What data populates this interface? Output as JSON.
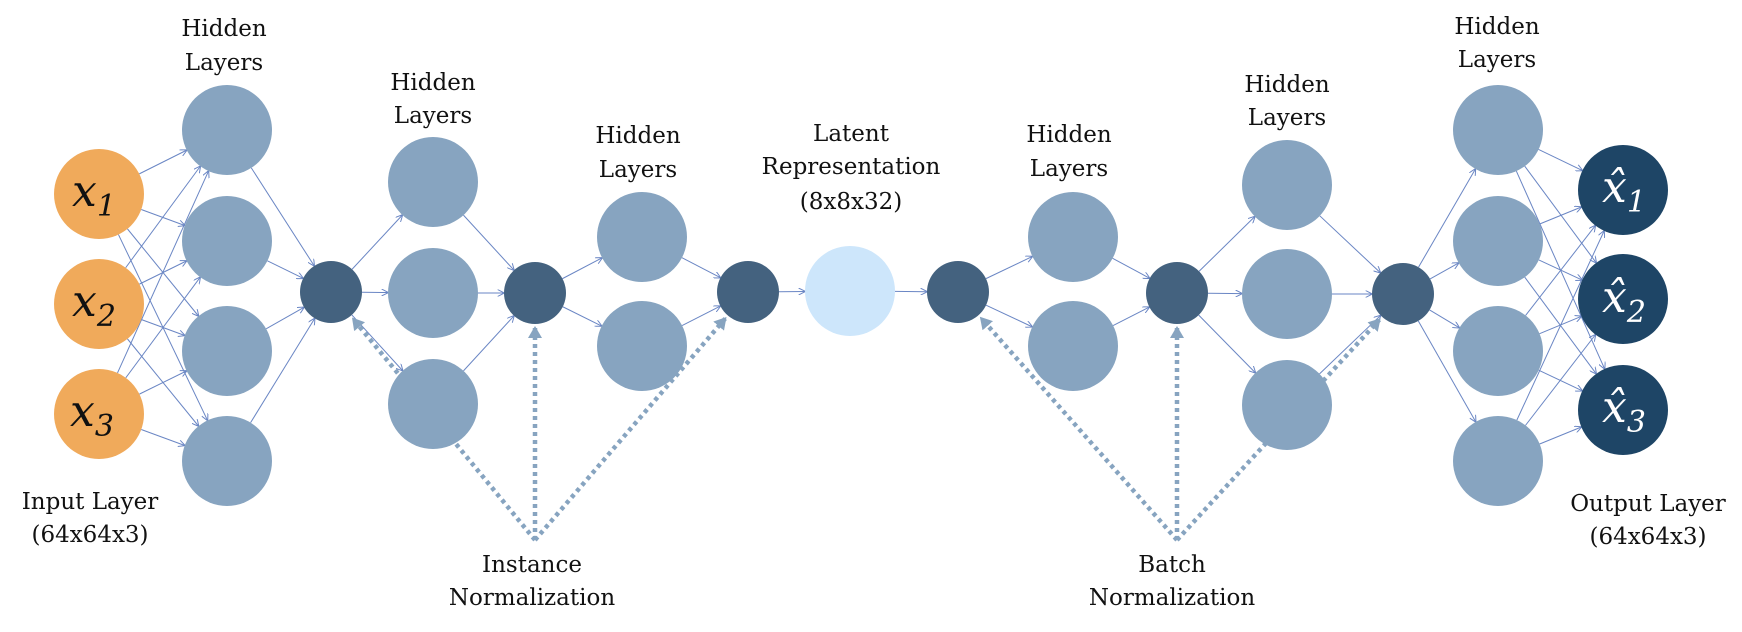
{
  "colors": {
    "input_node": "#f0aa5b",
    "hidden_node": "#87a4c0",
    "norm_node": "#44627f",
    "latent_node": "#cde6fb",
    "output_node": "#1e4566",
    "edge": "#6a86c4",
    "dotted": "#87a4c0"
  },
  "labels": {
    "input_layer": "Input Layer",
    "input_dims": "(64x64x3)",
    "output_layer": "Output Layer",
    "output_dims": "(64x64x3)",
    "hidden_1": "Hidden",
    "hidden_2": "Layers",
    "latent_1": "Latent",
    "latent_2": "Representation",
    "latent_3": "(8x8x32)",
    "instance_1": "Instance",
    "instance_2": "Normalization",
    "batch_1": "Batch",
    "batch_2": "Normalization"
  },
  "inputs": [
    {
      "base": "x",
      "sub": "1"
    },
    {
      "base": "x",
      "sub": "2"
    },
    {
      "base": "x",
      "sub": "3"
    }
  ],
  "outputs": [
    {
      "base": "x̂",
      "sub": "1"
    },
    {
      "base": "x̂",
      "sub": "2"
    },
    {
      "base": "x̂",
      "sub": "3"
    }
  ],
  "network": {
    "layer_kinds": [
      "input",
      "hidden",
      "norm",
      "hidden",
      "norm",
      "hidden",
      "norm",
      "latent",
      "norm",
      "hidden",
      "norm",
      "hidden",
      "norm",
      "hidden",
      "output"
    ],
    "layer_sizes": [
      3,
      4,
      1,
      3,
      1,
      2,
      1,
      1,
      1,
      2,
      1,
      3,
      1,
      4,
      3
    ],
    "instance_norm_targets": [
      2,
      4,
      6
    ],
    "batch_norm_targets": [
      8,
      10,
      12
    ]
  }
}
